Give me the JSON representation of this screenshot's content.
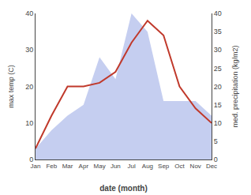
{
  "chart_data": {
    "type": "line",
    "xlabel": "date (month)",
    "ylabel": "max temp (C)",
    "y2label": "med. precipitation (kg/m2)",
    "categories": [
      "Jan",
      "Feb",
      "Mar",
      "Apr",
      "May",
      "Jun",
      "Jul",
      "Aug",
      "Sep",
      "Oct",
      "Nov",
      "Dec"
    ],
    "series": [
      {
        "type": "area",
        "axis": "y2",
        "color": "#c5cef0",
        "values": [
          3,
          8,
          12,
          15,
          28,
          22,
          40,
          35,
          16,
          16,
          16,
          12
        ]
      },
      {
        "type": "line",
        "color": "#c0392b",
        "values": [
          3,
          12,
          20,
          20,
          21,
          24,
          32,
          38,
          34,
          20,
          14,
          10
        ]
      }
    ],
    "ylim": [
      0,
      40
    ],
    "yticks": [
      0,
      10,
      20,
      30,
      40
    ],
    "y2lim": [
      0,
      40
    ],
    "y2ticks": [
      0,
      5,
      10,
      15,
      20,
      25,
      30,
      35,
      40
    ],
    "grid": false
  }
}
